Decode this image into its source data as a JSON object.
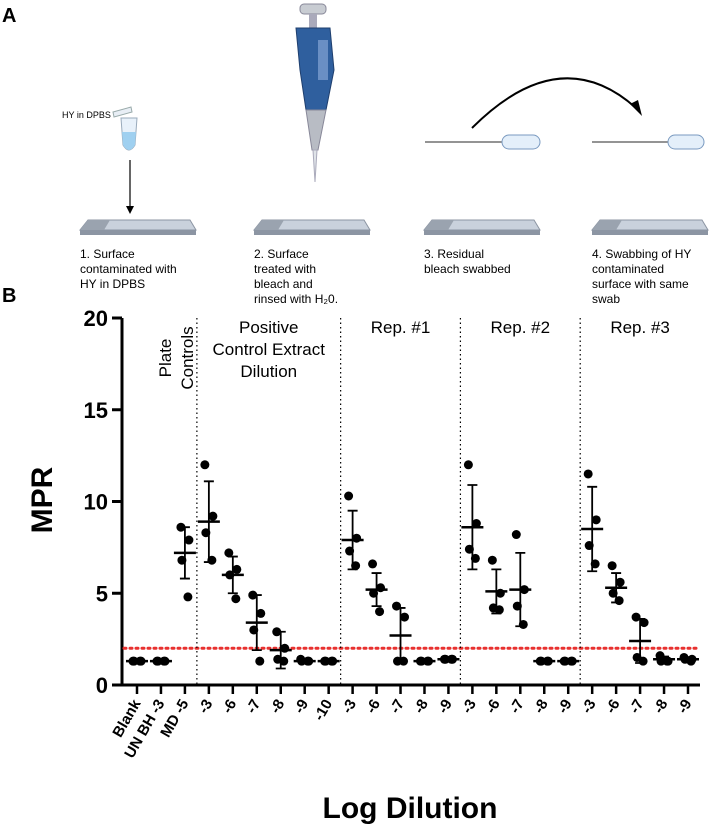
{
  "panel_a": {
    "label": "A",
    "tube_label": "HY in DPBS",
    "steps": [
      [
        "1.  Surface",
        "contaminated with",
        "HY in DPBS"
      ],
      [
        "2. Surface",
        "treated with",
        "bleach and",
        "rinsed with H₂0."
      ],
      [
        "3. Residual",
        "bleach swabbed"
      ],
      [
        "4. Swabbing of HY",
        "contaminated",
        "surface with same",
        "swab"
      ]
    ]
  },
  "chart_data": {
    "type": "dot",
    "panel_label": "B",
    "y_label": "MPR",
    "x_label": "Log Dilution",
    "ylim": [
      0,
      20
    ],
    "yticks": [
      0,
      5,
      10,
      15,
      20
    ],
    "group_labels": [
      [
        "Plate",
        "Controls"
      ],
      [
        "Positive",
        "Control Extract",
        "Dilution"
      ],
      [
        "Rep. #1"
      ],
      [
        "Rep. #2"
      ],
      [
        "Rep. #3"
      ]
    ],
    "categories": [
      "Blank",
      "UN BH -3",
      "MD -5",
      "-3",
      "-6",
      "-7",
      "-8",
      "-9",
      "-10",
      "-3",
      "-6",
      "-7",
      "-8",
      "-9",
      "-3",
      "-6",
      "-7",
      "-8",
      "-9",
      "-3",
      "-6",
      "-7",
      "-8",
      "-9"
    ],
    "points": [
      [
        1.3,
        1.3,
        1.3,
        1.3
      ],
      [
        1.3,
        1.3,
        1.3,
        1.3
      ],
      [
        8.6,
        7.9,
        6.8,
        4.8
      ],
      [
        12.0,
        9.2,
        8.3,
        6.8
      ],
      [
        7.2,
        6.3,
        6.0,
        4.7
      ],
      [
        4.9,
        3.9,
        3.0,
        1.3
      ],
      [
        2.9,
        2.0,
        1.4,
        1.3
      ],
      [
        1.4,
        1.3,
        1.3,
        1.3
      ],
      [
        1.3,
        1.3,
        1.3,
        1.3
      ],
      [
        10.3,
        8.0,
        7.3,
        6.5
      ],
      [
        6.6,
        5.3,
        5.0,
        4.0
      ],
      [
        4.3,
        3.7,
        1.3,
        1.3
      ],
      [
        1.3,
        1.3,
        1.3,
        1.3
      ],
      [
        1.4,
        1.4,
        1.4,
        1.4
      ],
      [
        12.0,
        8.8,
        7.4,
        6.9
      ],
      [
        6.8,
        5.0,
        4.2,
        4.1
      ],
      [
        8.2,
        5.2,
        4.3,
        3.3
      ],
      [
        1.3,
        1.3,
        1.3,
        1.3
      ],
      [
        1.3,
        1.3,
        1.3,
        1.3
      ],
      [
        11.5,
        9.0,
        7.6,
        6.6
      ],
      [
        6.5,
        5.6,
        5.0,
        4.6
      ],
      [
        3.7,
        3.4,
        1.5,
        1.3
      ],
      [
        1.6,
        1.3,
        1.3,
        1.3
      ],
      [
        1.5,
        1.4,
        1.4,
        1.3
      ]
    ],
    "mean": [
      1.3,
      1.3,
      7.2,
      8.9,
      6.0,
      3.4,
      1.9,
      1.3,
      1.3,
      7.9,
      5.2,
      2.7,
      1.3,
      1.4,
      8.6,
      5.1,
      5.2,
      1.3,
      1.3,
      8.5,
      5.3,
      2.4,
      1.4,
      1.4
    ],
    "sd": [
      0.05,
      0.05,
      1.4,
      2.2,
      1.0,
      1.5,
      1.0,
      0.05,
      0.05,
      1.6,
      0.9,
      1.5,
      0.05,
      0.05,
      2.3,
      1.2,
      2.0,
      0.05,
      0.05,
      2.3,
      0.8,
      1.2,
      0.15,
      0.1
    ],
    "groups": [
      3,
      6,
      5,
      5,
      5
    ],
    "color": "#000000",
    "threshold": 2.0,
    "threshold_color": "#e8312f"
  }
}
